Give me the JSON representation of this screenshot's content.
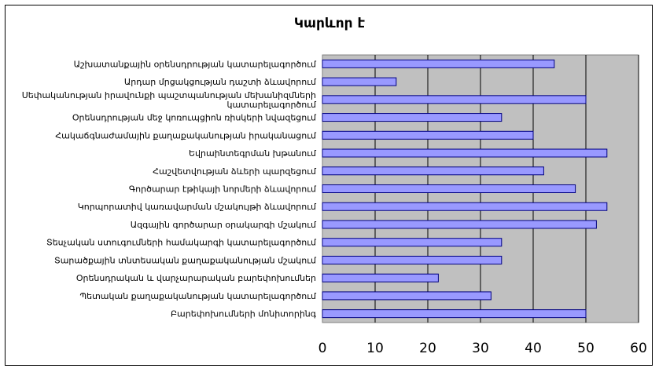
{
  "chart_data": {
    "type": "bar",
    "orientation": "horizontal",
    "title": "Կարևոր է",
    "categories": [
      "Աշխատանքային օրենսդրության կատարելագործում",
      "Արդար մրցակցության դաշտի ձևավորում",
      "Սեփականության իրավունքի պաշտպանության մեխանիզմների կատարելագործում",
      "Օրենսդրության մեջ կոռուպցիոն ռիսկերի նվազեցում",
      "Հակաճգնաժամային քաղաքականության իրականացում",
      "Եվրաինտեգրման խթանում",
      "Հաշվետվության ձևերի պարզեցում",
      "Գործարար էթիկայի նորմերի ձևավորում",
      "Կորպորատիվ կառավարման մշակույթի ձևավորում",
      "Ազգային գործարար օրակարգի մշակում",
      "Տեսչական ստուգումների համակարգի կատարելագործում",
      "Տարածքային տնտեսական քաղաքականության մշակում",
      "Օրենսդրական և վարչարարական բարեփոխումներ",
      "Պետական քաղաքականության կատարելագործում",
      "Բարեփոխումների մոնիտորինգ"
    ],
    "values": [
      44,
      14,
      50,
      34,
      40,
      54,
      42,
      48,
      54,
      52,
      34,
      34,
      22,
      32,
      50
    ],
    "xlim": [
      0,
      60
    ],
    "xticks": [
      0,
      10,
      20,
      30,
      40,
      50,
      60
    ],
    "grid": true,
    "legend": "none",
    "colors": {
      "bar_fill": "#9999ff",
      "bar_stroke": "#000080",
      "plot_background": "#c0c0c0",
      "gridline": "#000000"
    }
  }
}
